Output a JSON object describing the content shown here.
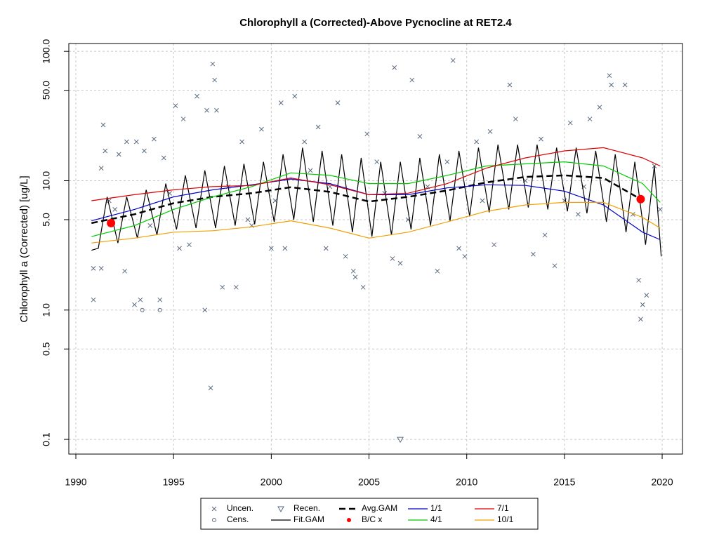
{
  "chart_data": {
    "type": "scatter",
    "title": "Chlorophyll a (Corrected)-Above Pycnocline at RET2.4",
    "y_label": "Chlorophyll a (Corrected) [ug/L]",
    "log_y": true,
    "grid": true,
    "xlim": [
      1989.64,
      2021.04
    ],
    "ylim": [
      0.077,
      115
    ],
    "xticks": [
      1990,
      1995,
      2000,
      2005,
      2010,
      2015,
      2020
    ],
    "yticks": [
      0.1,
      0.5,
      {
        "value": 1,
        "label": "1.0"
      },
      {
        "value": 5,
        "label": "5.0"
      },
      {
        "value": 10,
        "label": "10.0"
      },
      {
        "value": 50,
        "label": "50.0"
      },
      {
        "value": 100,
        "label": "100.0"
      }
    ],
    "series": [
      {
        "name": "Uncen.",
        "color": "#5a6a80",
        "marker": "x",
        "line": null,
        "x": [
          1990.9,
          1990.9,
          1991.3,
          1991.3,
          1991.4,
          1991.5,
          1991.7,
          1992.0,
          1992.2,
          1992.5,
          1992.6,
          1993.0,
          1993.1,
          1993.3,
          1993.5,
          1993.8,
          1994.0,
          1994.3,
          1994.5,
          1994.8,
          1995.1,
          1995.3,
          1995.5,
          1995.8,
          1996.2,
          1996.6,
          1996.7,
          1996.9,
          1997.0,
          1997.1,
          1997.2,
          1997.5,
          1997.8,
          1998.2,
          1998.5,
          1998.8,
          1999.0,
          1999.5,
          2000.0,
          2000.2,
          2000.5,
          2000.7,
          2001.2,
          2001.7,
          2002.0,
          2002.4,
          2002.8,
          2003.0,
          2003.4,
          2003.8,
          2004.2,
          2004.3,
          2004.7,
          2004.9,
          2005.4,
          2005.8,
          2006.2,
          2006.3,
          2006.6,
          2007.0,
          2007.2,
          2007.6,
          2008.0,
          2008.5,
          2009.0,
          2009.3,
          2009.6,
          2009.9,
          2010.5,
          2010.8,
          2011.2,
          2011.4,
          2012.2,
          2012.5,
          2013.0,
          2013.4,
          2013.8,
          2014.0,
          2014.5,
          2015.0,
          2015.3,
          2015.7,
          2016.0,
          2016.3,
          2016.8,
          2017.3,
          2017.4,
          2018.1,
          2018.5,
          2018.8,
          2018.9,
          2019.0,
          2019.2,
          2019.6,
          2019.9
        ],
        "values": [
          2.1,
          1.2,
          2.1,
          12.5,
          27,
          17,
          7,
          6,
          16,
          2.0,
          20,
          1.1,
          20,
          1.2,
          17,
          4.5,
          21,
          1.2,
          15,
          8,
          38,
          3.0,
          30,
          3.2,
          45,
          1.0,
          35,
          0.25,
          80,
          60,
          35,
          1.5,
          9,
          1.5,
          20,
          5,
          4.5,
          25,
          3.0,
          7,
          40,
          3.0,
          45,
          20,
          12,
          26,
          3.0,
          9,
          40,
          2.6,
          2.0,
          1.8,
          1.5,
          23,
          14,
          8,
          2.5,
          75,
          2.3,
          5,
          60,
          22,
          9,
          2.0,
          14,
          85,
          3.0,
          2.6,
          20,
          7,
          24,
          3.2,
          55,
          30,
          10,
          2.7,
          21,
          3.8,
          2.2,
          7,
          28,
          5.5,
          9,
          30,
          37,
          65,
          55,
          55,
          5.5,
          1.7,
          0.85,
          1.1,
          1.3,
          13,
          6.0
        ]
      },
      {
        "name": "Cens.",
        "color": "#5a6a80",
        "marker": "circle",
        "line": null,
        "x": [
          1993.4,
          1994.3
        ],
        "values": [
          1.0,
          1.0
        ]
      },
      {
        "name": "Recen.",
        "color": "#5a6a80",
        "marker": "triangle",
        "line": null,
        "x": [
          2006.6
        ],
        "values": [
          0.1
        ]
      },
      {
        "name": "Fit.GAM",
        "color": "#000000",
        "marker": null,
        "line": "solid",
        "x": [
          1990.8,
          1991.15,
          1991.6,
          1992.15,
          1992.6,
          1993.15,
          1993.6,
          1994.15,
          1994.6,
          1995.15,
          1995.6,
          1996.15,
          1996.6,
          1997.15,
          1997.6,
          1998.15,
          1998.6,
          1999.15,
          1999.6,
          2000.15,
          2000.6,
          2001.15,
          2001.6,
          2002.15,
          2002.6,
          2003.15,
          2003.6,
          2004.15,
          2004.6,
          2005.15,
          2005.6,
          2006.15,
          2006.6,
          2007.15,
          2007.6,
          2008.15,
          2008.6,
          2009.15,
          2009.6,
          2010.15,
          2010.6,
          2011.15,
          2011.6,
          2012.15,
          2012.6,
          2013.15,
          2013.6,
          2014.15,
          2014.6,
          2015.15,
          2015.6,
          2016.15,
          2016.6,
          2017.15,
          2017.6,
          2018.15,
          2018.6,
          2019.15,
          2019.6,
          2019.95
        ],
        "values": [
          2.9,
          3.0,
          7.5,
          3.3,
          7.5,
          3.6,
          8.5,
          3.8,
          9.5,
          4.2,
          11,
          4.3,
          12,
          4.3,
          13,
          4.5,
          13.5,
          4.6,
          14,
          4.8,
          16,
          5.0,
          18,
          4.8,
          17,
          4.5,
          16,
          4.0,
          15,
          3.7,
          14,
          3.8,
          14,
          4.2,
          15,
          4.5,
          16,
          4.9,
          17,
          5.3,
          18,
          5.7,
          19,
          6.0,
          19,
          6.2,
          19,
          6.0,
          18,
          5.8,
          18,
          5.6,
          17,
          4.8,
          16,
          4.0,
          14,
          3.2,
          13,
          2.6
        ]
      },
      {
        "name": "Avg.GAM",
        "color": "#000000",
        "marker": null,
        "line": "dashed",
        "x": [
          1990.8,
          1993,
          1995,
          1997,
          1999,
          2001,
          2003,
          2005,
          2007,
          2009,
          2011,
          2013,
          2015,
          2017,
          2018.9
        ],
        "values": [
          4.7,
          5.5,
          6.7,
          7.5,
          8.0,
          8.9,
          8.2,
          6.9,
          7.5,
          8.4,
          9.7,
          10.7,
          11.0,
          10.5,
          7.2
        ]
      },
      {
        "name": "B/C x",
        "color": "#ff0000",
        "marker": "dot",
        "line": null,
        "x": [
          1991.8,
          2018.9
        ],
        "values": [
          4.7,
          7.2
        ]
      },
      {
        "name": "1/1",
        "color": "#0000cc",
        "marker": null,
        "line": "solid",
        "x": [
          1990.8,
          1993,
          1995,
          1997,
          1999,
          2001,
          2003,
          2005,
          2007,
          2009,
          2011,
          2013,
          2015,
          2017,
          2019,
          2019.9
        ],
        "values": [
          4.9,
          6.0,
          7.5,
          8.5,
          9.3,
          10.3,
          9.5,
          7.8,
          7.8,
          8.8,
          9.3,
          9.2,
          8.3,
          6.5,
          4.0,
          3.5
        ]
      },
      {
        "name": "4/1",
        "color": "#00cc00",
        "marker": null,
        "line": "solid",
        "x": [
          1990.8,
          1993,
          1995,
          1997,
          1999,
          2001,
          2003,
          2005,
          2007,
          2009,
          2011,
          2013,
          2015,
          2017,
          2019,
          2019.9
        ],
        "values": [
          3.7,
          4.5,
          6.0,
          7.5,
          9.0,
          11.5,
          11,
          9.5,
          9.5,
          11,
          13,
          13.5,
          14,
          13,
          9.5,
          6.8
        ]
      },
      {
        "name": "7/1",
        "color": "#dd0000",
        "marker": null,
        "line": "solid",
        "x": [
          1990.8,
          1993,
          1995,
          1997,
          1999,
          2001,
          2003,
          2005,
          2007,
          2009,
          2011,
          2013,
          2015,
          2017,
          2019,
          2019.9
        ],
        "values": [
          7.0,
          7.8,
          8.5,
          9.0,
          9.2,
          10.5,
          9.3,
          7.8,
          8.0,
          9.5,
          12.5,
          15,
          17,
          18,
          15,
          13
        ]
      },
      {
        "name": "10/1",
        "color": "#f0a000",
        "marker": null,
        "line": "solid",
        "x": [
          1990.8,
          1993,
          1995,
          1997,
          1999,
          2001,
          2003,
          2005,
          2007,
          2009,
          2011,
          2013,
          2015,
          2017,
          2019,
          2019.9
        ],
        "values": [
          3.3,
          3.6,
          4.0,
          4.1,
          4.4,
          4.9,
          4.3,
          3.6,
          4.0,
          4.8,
          5.8,
          6.5,
          6.8,
          6.8,
          5.2,
          4.3
        ]
      }
    ]
  }
}
